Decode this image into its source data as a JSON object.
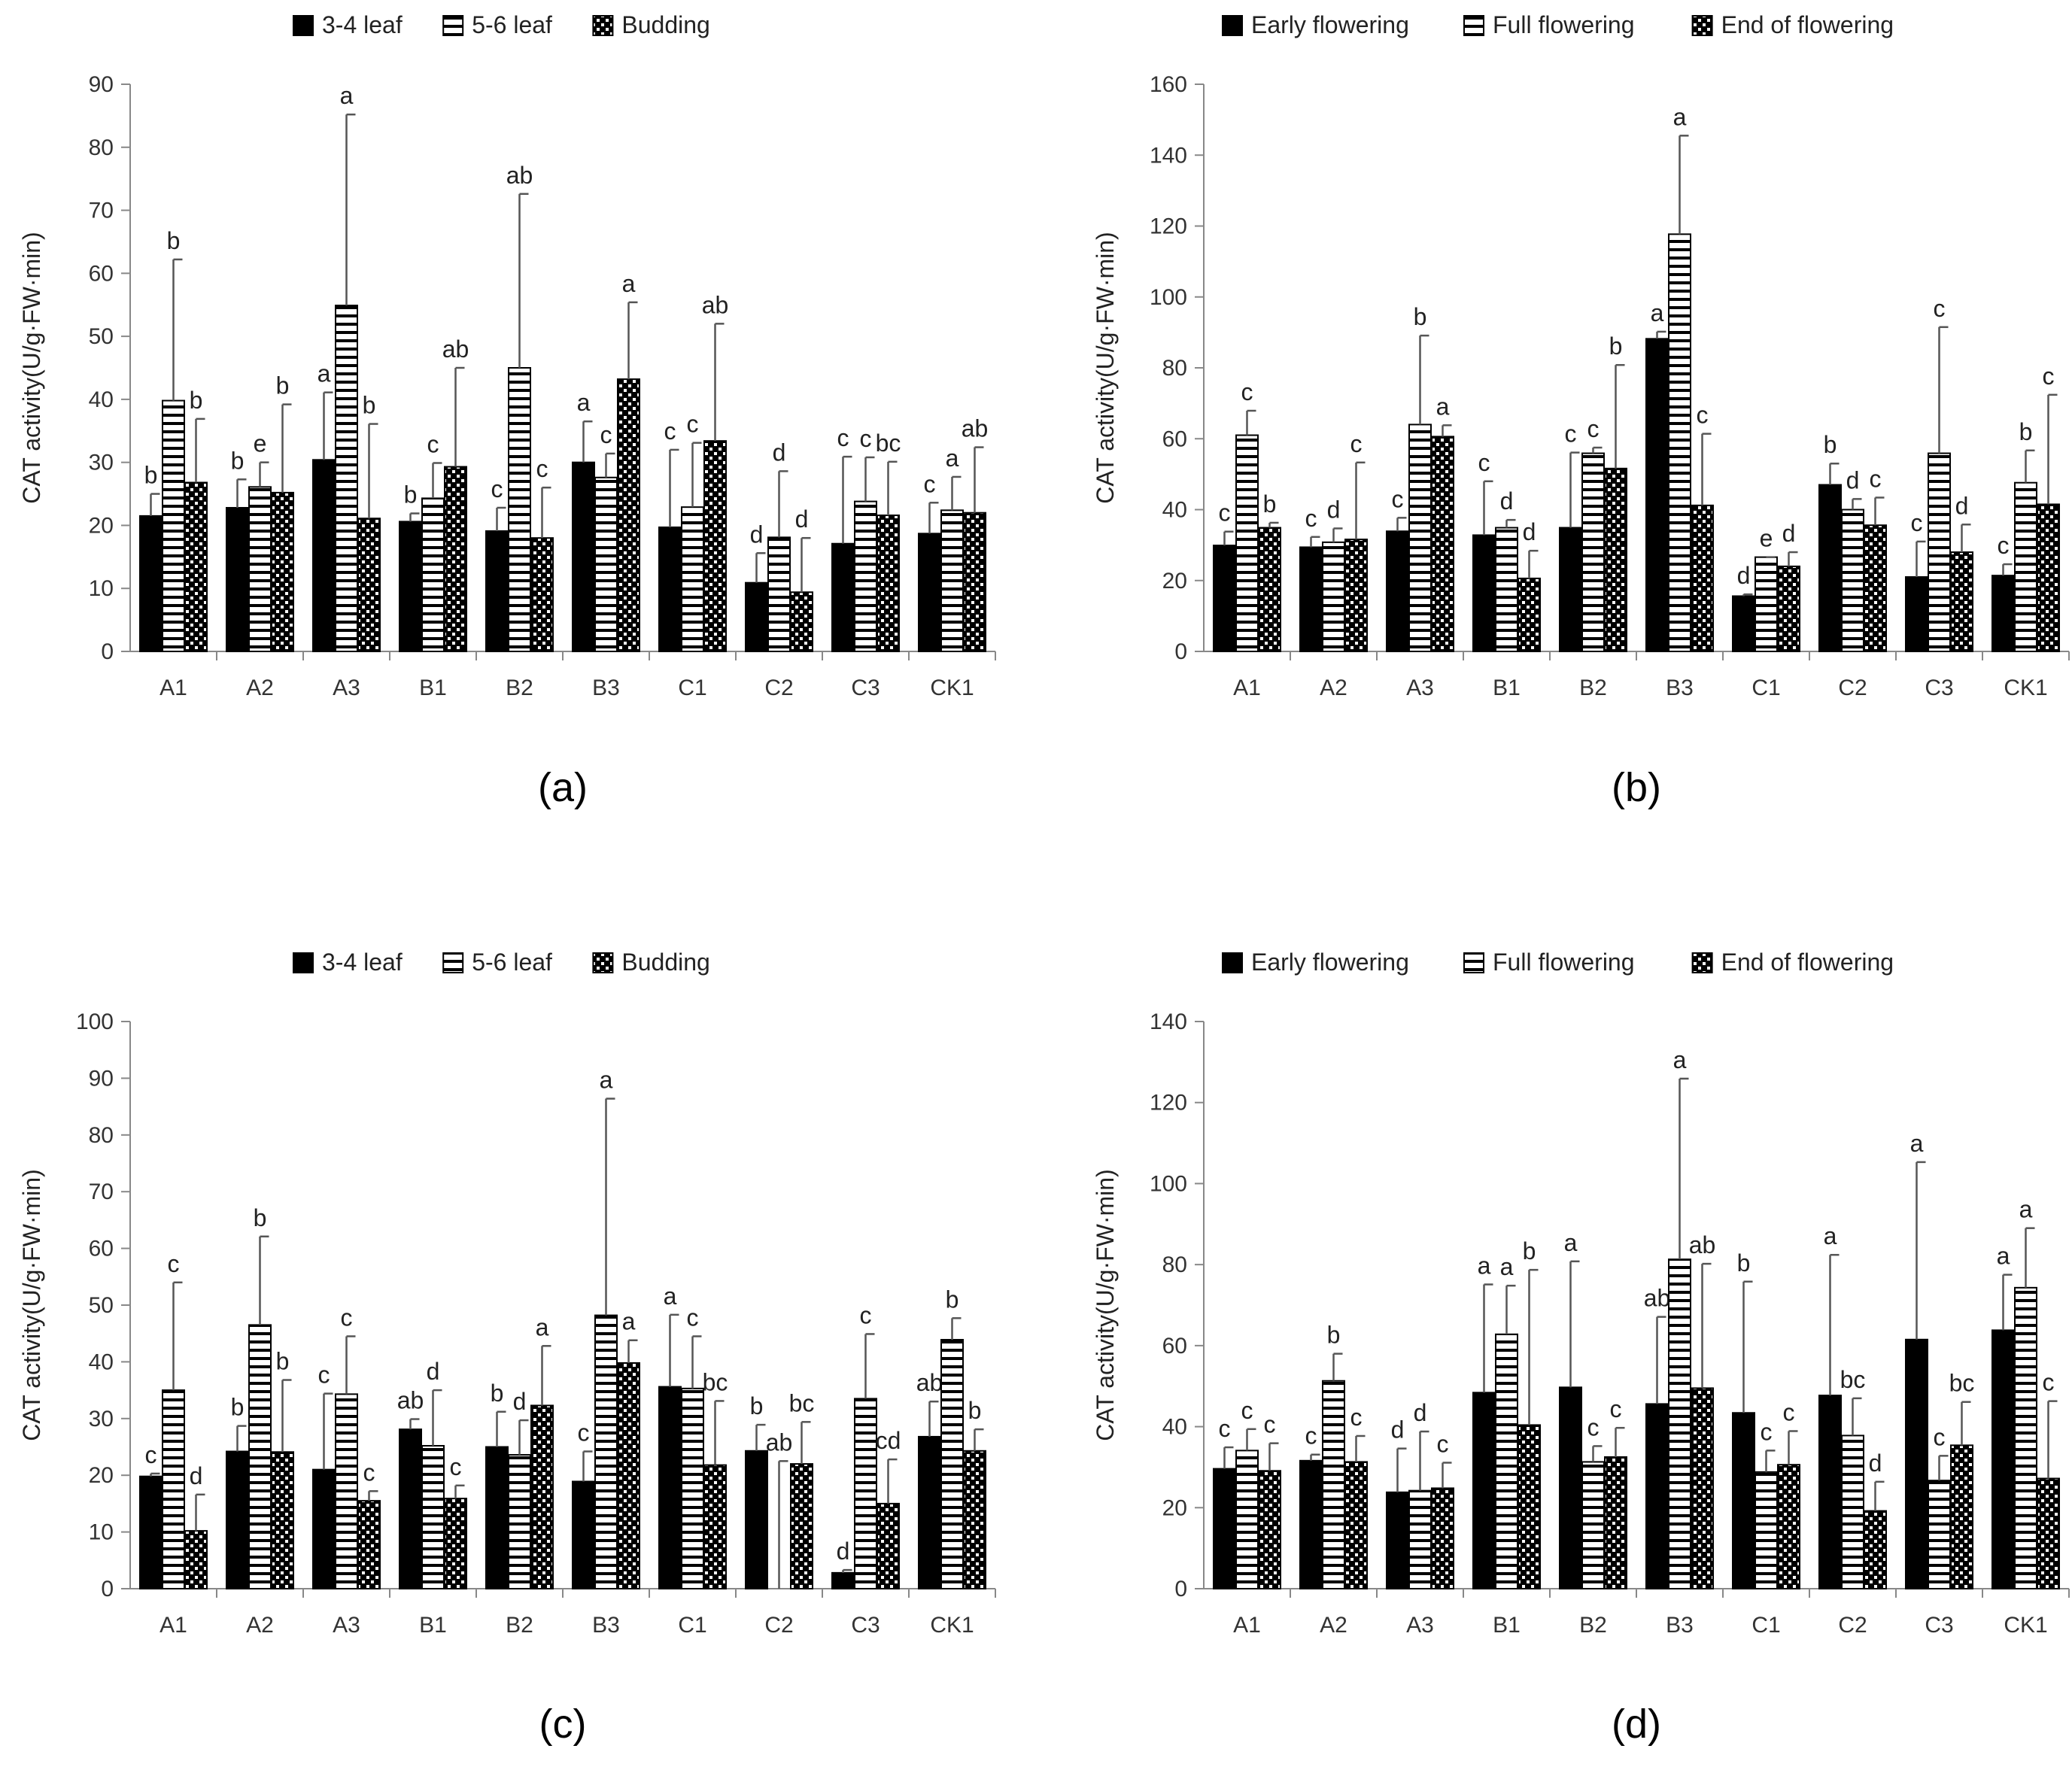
{
  "figure": {
    "panel_labels": [
      "(a)",
      "(b)",
      "(c)",
      "(d)"
    ]
  },
  "chart_data": [
    {
      "type": "bar",
      "panel_label": "(a)",
      "title": "",
      "xlabel": "",
      "ylabel": "CAT activity(U/g·FW·min)",
      "ylim": [
        0,
        90
      ],
      "yticks": [
        0,
        10,
        20,
        30,
        40,
        50,
        60,
        70,
        80,
        90
      ],
      "categories": [
        "A1",
        "A2",
        "A3",
        "B1",
        "B2",
        "B3",
        "C1",
        "C2",
        "C3",
        "CK1"
      ],
      "legend": {
        "position": "top",
        "labels": [
          "3-4 leaf",
          "5-6 leaf",
          "Budding"
        ]
      },
      "series": [
        {
          "name": "3-4 leaf",
          "pattern": "solid",
          "values": [
            21.5,
            22.8,
            30.4,
            20.6,
            19.1,
            30.0,
            19.7,
            10.9,
            17.1,
            18.7
          ],
          "errors": [
            3.5,
            4.5,
            10.7,
            1.3,
            3.7,
            6.5,
            12.3,
            4.7,
            13.8,
            4.9
          ],
          "labels": [
            "b",
            "b",
            "a",
            "b",
            "c",
            "a",
            "c",
            "d",
            "c",
            "c"
          ]
        },
        {
          "name": "5-6 leaf",
          "pattern": "hstripe",
          "values": [
            39.8,
            26.1,
            54.9,
            24.3,
            45.0,
            27.6,
            22.9,
            18.1,
            23.8,
            22.4
          ],
          "errors": [
            22.4,
            3.9,
            30.3,
            5.6,
            27.6,
            3.8,
            10.2,
            10.5,
            7.0,
            5.3
          ],
          "labels": [
            "b",
            "e",
            "a",
            "c",
            "ab",
            "c",
            "c",
            "d",
            "c",
            "a"
          ]
        },
        {
          "name": "Budding",
          "pattern": "dots",
          "values": [
            26.8,
            25.2,
            21.1,
            29.3,
            18.0,
            43.2,
            33.4,
            9.4,
            21.6,
            22.0
          ],
          "errors": [
            10.1,
            14.0,
            15.0,
            15.7,
            8.0,
            12.2,
            18.6,
            8.6,
            8.5,
            10.4
          ],
          "labels": [
            "b",
            "b",
            "b",
            "ab",
            "c",
            "a",
            "ab",
            "d",
            "bc",
            "ab"
          ]
        }
      ]
    },
    {
      "type": "bar",
      "panel_label": "(b)",
      "title": "",
      "xlabel": "",
      "ylabel": "CAT activity(U/g·FW·min)",
      "ylim": [
        0,
        160
      ],
      "yticks": [
        0,
        20,
        40,
        60,
        80,
        100,
        120,
        140,
        160
      ],
      "categories": [
        "A1",
        "A2",
        "A3",
        "B1",
        "B2",
        "B3",
        "C1",
        "C2",
        "C3",
        "CK1"
      ],
      "legend": {
        "position": "top",
        "labels": [
          "Early flowering",
          "Full flowering",
          "End of flowering"
        ]
      },
      "series": [
        {
          "name": "Early flowering",
          "pattern": "solid",
          "values": [
            29.9,
            29.4,
            33.9,
            32.8,
            34.9,
            88.2,
            15.6,
            47.0,
            21.0,
            21.4
          ],
          "errors": [
            3.9,
            2.9,
            3.8,
            15.2,
            21.2,
            2.0,
            0.5,
            6.0,
            10.0,
            3.2
          ],
          "labels": [
            "c",
            "c",
            "c",
            "c",
            "c",
            "a",
            "d",
            "b",
            "c",
            "c"
          ]
        },
        {
          "name": "Full flowering",
          "pattern": "hstripe",
          "values": [
            61.0,
            30.8,
            64.0,
            34.9,
            55.9,
            117.7,
            26.6,
            40.0,
            55.9,
            47.6
          ],
          "errors": [
            6.9,
            3.9,
            25.1,
            2.2,
            1.6,
            27.8,
            0.0,
            3.0,
            35.6,
            9.1
          ],
          "labels": [
            "c",
            "d",
            "b",
            "d",
            "c",
            "a",
            "e",
            "d",
            "c",
            "b"
          ]
        },
        {
          "name": "End of flowering",
          "pattern": "dots",
          "values": [
            34.9,
            31.6,
            60.6,
            20.6,
            51.6,
            41.2,
            24.0,
            35.6,
            28.0,
            41.5
          ],
          "errors": [
            1.4,
            21.7,
            3.2,
            7.8,
            29.2,
            20.2,
            4.0,
            7.8,
            7.8,
            30.9
          ],
          "labels": [
            "b",
            "c",
            "a",
            "d",
            "b",
            "c",
            "d",
            "c",
            "d",
            "c"
          ]
        }
      ]
    },
    {
      "type": "bar",
      "panel_label": "(c)",
      "title": "",
      "xlabel": "",
      "ylabel": "CAT activity(U/g·FW·min)",
      "ylim": [
        0,
        100
      ],
      "yticks": [
        0,
        10,
        20,
        30,
        40,
        50,
        60,
        70,
        80,
        90,
        100
      ],
      "categories": [
        "A1",
        "A2",
        "A3",
        "B1",
        "B2",
        "B3",
        "C1",
        "C2",
        "C3",
        "CK1"
      ],
      "legend": {
        "position": "top",
        "labels": [
          "3-4 leaf",
          "5-6 leaf",
          "Budding"
        ]
      },
      "series": [
        {
          "name": "3-4 leaf",
          "pattern": "solid",
          "values": [
            19.8,
            24.2,
            21.0,
            28.1,
            25.0,
            18.9,
            35.6,
            24.3,
            2.8,
            26.8
          ],
          "errors": [
            0.5,
            4.5,
            13.4,
            1.8,
            6.2,
            5.3,
            12.7,
            4.6,
            0.5,
            6.2
          ],
          "labels": [
            "c",
            "b",
            "c",
            "ab",
            "b",
            "c",
            "a",
            "b",
            "d",
            "ab"
          ]
        },
        {
          "name": "5-6 leaf",
          "pattern": "hstripe",
          "values": [
            35.0,
            46.5,
            34.3,
            25.2,
            23.6,
            48.2,
            35.3,
            0.0,
            33.5,
            43.9
          ],
          "errors": [
            19.0,
            15.6,
            10.2,
            9.8,
            6.1,
            38.2,
            9.2,
            22.5,
            11.4,
            3.8
          ],
          "labels": [
            "c",
            "b",
            "c",
            "d",
            "d",
            "a",
            "c",
            "ab",
            "c",
            "b"
          ]
        },
        {
          "name": "Budding",
          "pattern": "dots",
          "values": [
            10.2,
            24.1,
            15.5,
            15.9,
            32.3,
            39.8,
            21.8,
            22.0,
            15.0,
            24.3
          ],
          "errors": [
            6.4,
            12.7,
            1.7,
            2.3,
            10.5,
            4.0,
            11.3,
            7.4,
            7.8,
            3.8
          ],
          "labels": [
            "d",
            "b",
            "c",
            "c",
            "a",
            "a",
            "bc",
            "bc",
            "cd",
            "b"
          ]
        }
      ]
    },
    {
      "type": "bar",
      "panel_label": "(d)",
      "title": "",
      "xlabel": "",
      "ylabel": "CAT activity(U/g·FW·min)",
      "ylim": [
        0,
        140
      ],
      "yticks": [
        0,
        20,
        40,
        60,
        80,
        100,
        120,
        140
      ],
      "categories": [
        "A1",
        "A2",
        "A3",
        "B1",
        "B2",
        "B3",
        "C1",
        "C2",
        "C3",
        "CK1"
      ],
      "legend": {
        "position": "top",
        "labels": [
          "Early flowering",
          "Full flowering",
          "End of flowering"
        ]
      },
      "series": [
        {
          "name": "Early flowering",
          "pattern": "solid",
          "values": [
            29.6,
            31.6,
            23.8,
            48.4,
            49.7,
            45.6,
            43.4,
            47.7,
            61.5,
            63.8
          ],
          "errors": [
            5.3,
            1.5,
            10.8,
            26.7,
            31.1,
            21.5,
            32.4,
            34.7,
            43.8,
            13.7
          ],
          "labels": [
            "c",
            "c",
            "d",
            "a",
            "a",
            "ab",
            "b",
            "a",
            "a",
            "a"
          ]
        },
        {
          "name": "Full flowering",
          "pattern": "hstripe",
          "values": [
            34.1,
            51.3,
            24.2,
            62.8,
            31.3,
            81.3,
            28.8,
            37.8,
            26.7,
            74.3
          ],
          "errors": [
            5.3,
            6.7,
            14.6,
            12.0,
            3.9,
            44.6,
            5.3,
            9.2,
            6.1,
            14.7
          ],
          "labels": [
            "c",
            "b",
            "d",
            "a",
            "c",
            "a",
            "c",
            "bc",
            "c",
            "a"
          ]
        },
        {
          "name": "End of flowering",
          "pattern": "dots",
          "values": [
            29.1,
            31.3,
            24.8,
            40.4,
            32.5,
            49.5,
            30.6,
            19.2,
            35.4,
            27.2
          ],
          "errors": [
            6.8,
            6.4,
            6.3,
            38.3,
            7.2,
            30.7,
            8.3,
            7.2,
            10.7,
            19.1
          ],
          "labels": [
            "c",
            "c",
            "c",
            "b",
            "c",
            "ab",
            "c",
            "d",
            "bc",
            "c"
          ]
        }
      ]
    }
  ]
}
